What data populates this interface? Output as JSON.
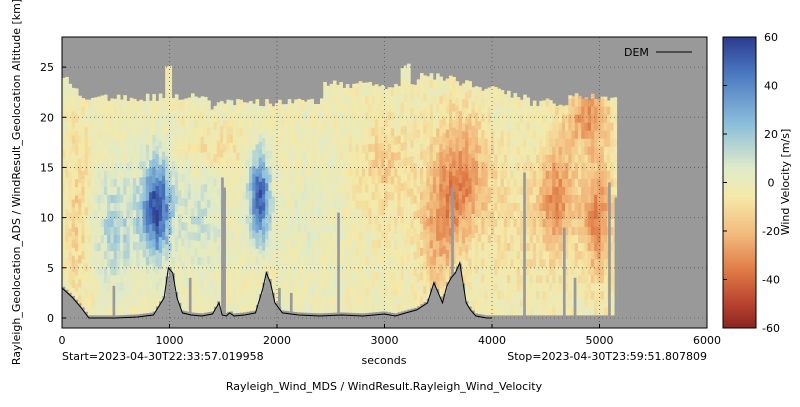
{
  "chart_data": {
    "type": "heatmap",
    "title": "",
    "xlabel": "seconds",
    "ylabel": "Rayleigh_Geolocation_ADS / WindResult_Geolocation Altitude [km]",
    "colorbar_label": "Wind Velocity [m/s]",
    "bottom_label": "Rayleigh_Wind_MDS / WindResult.Rayleigh_Wind_Velocity",
    "start_label": "Start=2023-04-30T22:33:57.019958",
    "stop_label": "Stop=2023-04-30T23:59:51.807809",
    "xlim": [
      0,
      6000
    ],
    "ylim": [
      -1,
      28
    ],
    "clim": [
      -60,
      60
    ],
    "x_ticks": [
      "0",
      "1000",
      "2000",
      "3000",
      "4000",
      "5000",
      "6000"
    ],
    "y_ticks": [
      "0",
      "5",
      "10",
      "15",
      "20",
      "25"
    ],
    "colorbar_ticks": [
      "60",
      "40",
      "20",
      "0",
      "-20",
      "-40",
      "-60"
    ],
    "grid": true,
    "background_color": "#999999",
    "colormap": [
      "#2c3b8f",
      "#4a78c0",
      "#8cbfdc",
      "#dfeaca",
      "#f5e9a8",
      "#f2b97c",
      "#e07b45",
      "#b8412e",
      "#8a2420"
    ],
    "legend": {
      "position": "top-right",
      "entries": [
        {
          "name": "DEM",
          "color": "#000000"
        }
      ]
    },
    "data_extent_x": [
      0,
      5160
    ],
    "series": [
      {
        "name": "DEM",
        "x": [
          0,
          100,
          180,
          250,
          300,
          500,
          700,
          850,
          950,
          990,
          1030,
          1070,
          1120,
          1200,
          1300,
          1400,
          1460,
          1490,
          1530,
          1560,
          1600,
          1700,
          1800,
          1870,
          1900,
          1940,
          1980,
          2050,
          2200,
          2400,
          2600,
          2800,
          3000,
          3100,
          3200,
          3300,
          3400,
          3460,
          3500,
          3540,
          3580,
          3620,
          3660,
          3700,
          3730,
          3760,
          3800,
          3850,
          3900,
          3950,
          4000
        ],
        "y": [
          3,
          2,
          1,
          0,
          0,
          0,
          0.1,
          0.3,
          2,
          5,
          4.5,
          2,
          0.5,
          0.3,
          0.2,
          0.4,
          1.5,
          0.3,
          0.2,
          0.5,
          0.2,
          0.3,
          0.5,
          3,
          4.5,
          3.5,
          1.5,
          0.5,
          0.3,
          0.2,
          0.3,
          0.2,
          0.4,
          0.2,
          0.5,
          0.8,
          1.5,
          3.5,
          2.5,
          1.5,
          3.2,
          4,
          4.5,
          5.5,
          3.5,
          1.5,
          0.8,
          0.2,
          0.1,
          0,
          0
        ]
      }
    ]
  }
}
